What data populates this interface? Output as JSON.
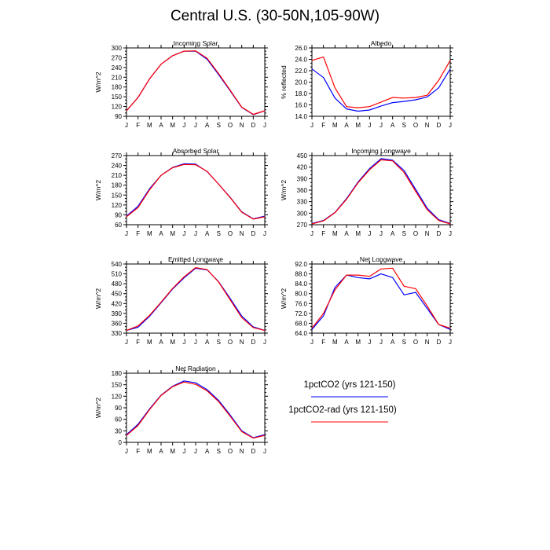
{
  "page_title": "Central U.S. (30-50N,105-90W)",
  "colors": {
    "series1": "#0000ff",
    "series2": "#ff0000",
    "axis": "#000000"
  },
  "legend": [
    {
      "name": "1pctCO2 (yrs 121-150)",
      "color": "#0000ff"
    },
    {
      "name": "1pctCO2-rad (yrs 121-150)",
      "color": "#ff0000"
    }
  ],
  "chart_data": [
    {
      "type": "line",
      "title": "Incoming Solar",
      "ylabel": "W/m^2",
      "categories": [
        "J",
        "F",
        "M",
        "A",
        "M",
        "J",
        "J",
        "A",
        "S",
        "O",
        "N",
        "D",
        "J"
      ],
      "ylim": [
        90,
        300
      ],
      "yticks": [
        90,
        120,
        150,
        180,
        210,
        240,
        270,
        300
      ],
      "series": [
        {
          "name": "1pctCO2 (yrs 121-150)",
          "color": "#0000ff",
          "values": [
            107,
            148,
            205,
            250,
            276,
            290,
            290,
            265,
            218,
            168,
            117,
            95,
            107
          ]
        },
        {
          "name": "1pctCO2-rad (yrs 121-150)",
          "color": "#ff0000",
          "values": [
            107,
            148,
            205,
            250,
            276,
            290,
            291,
            268,
            221,
            170,
            118,
            96,
            107
          ]
        }
      ]
    },
    {
      "type": "line",
      "title": "Albedo",
      "ylabel": "% reflected",
      "categories": [
        "J",
        "F",
        "M",
        "A",
        "M",
        "J",
        "J",
        "A",
        "S",
        "O",
        "N",
        "D",
        "J"
      ],
      "ylim": [
        14,
        26
      ],
      "yticks": [
        "14.0",
        "16.0",
        "18.0",
        "20.0",
        "22.0",
        "24.0",
        "26.0"
      ],
      "series": [
        {
          "name": "1pctCO2 (yrs 121-150)",
          "color": "#0000ff",
          "values": [
            22.3,
            20.8,
            17.2,
            15.3,
            14.9,
            15.1,
            15.8,
            16.4,
            16.6,
            16.9,
            17.4,
            19.0,
            22.3
          ]
        },
        {
          "name": "1pctCO2-rad (yrs 121-150)",
          "color": "#ff0000",
          "values": [
            23.8,
            24.4,
            19.0,
            15.7,
            15.5,
            15.7,
            16.5,
            17.3,
            17.2,
            17.3,
            17.7,
            20.3,
            23.8
          ]
        }
      ]
    },
    {
      "type": "line",
      "title": "Absorbed Solar",
      "ylabel": "W/m^2",
      "categories": [
        "J",
        "F",
        "M",
        "A",
        "M",
        "J",
        "J",
        "A",
        "S",
        "O",
        "N",
        "D",
        "J"
      ],
      "ylim": [
        60,
        270
      ],
      "yticks": [
        60,
        90,
        120,
        150,
        180,
        210,
        240,
        270
      ],
      "series": [
        {
          "name": "1pctCO2 (yrs 121-150)",
          "color": "#0000ff",
          "values": [
            86,
            116,
            169,
            210,
            234,
            245,
            244,
            221,
            183,
            143,
            99,
            78,
            86
          ]
        },
        {
          "name": "1pctCO2-rad (yrs 121-150)",
          "color": "#ff0000",
          "values": [
            84,
            112,
            166,
            210,
            233,
            243,
            242,
            222,
            183,
            142,
            98,
            77,
            84
          ]
        }
      ]
    },
    {
      "type": "line",
      "title": "Incoming Longwave",
      "ylabel": "W/m^2",
      "categories": [
        "J",
        "F",
        "M",
        "A",
        "M",
        "J",
        "J",
        "A",
        "S",
        "O",
        "N",
        "D",
        "J"
      ],
      "ylim": [
        270,
        450
      ],
      "yticks": [
        270,
        300,
        330,
        360,
        390,
        420,
        450
      ],
      "series": [
        {
          "name": "1pctCO2 (yrs 121-150)",
          "color": "#0000ff",
          "values": [
            273,
            281,
            302,
            338,
            381,
            416,
            442,
            438,
            411,
            362,
            313,
            283,
            273
          ]
        },
        {
          "name": "1pctCO2-rad (yrs 121-150)",
          "color": "#ff0000",
          "values": [
            272,
            280,
            301,
            336,
            379,
            413,
            439,
            436,
            406,
            357,
            309,
            281,
            272
          ]
        }
      ]
    },
    {
      "type": "line",
      "title": "Emitted Longwave",
      "ylabel": "W/m^2",
      "categories": [
        "J",
        "F",
        "M",
        "A",
        "M",
        "J",
        "J",
        "A",
        "S",
        "O",
        "N",
        "D",
        "J"
      ],
      "ylim": [
        330,
        540
      ],
      "yticks": [
        330,
        360,
        390,
        420,
        450,
        480,
        510,
        540
      ],
      "series": [
        {
          "name": "1pctCO2 (yrs 121-150)",
          "color": "#0000ff",
          "values": [
            338,
            348,
            381,
            422,
            464,
            498,
            527,
            522,
            486,
            435,
            382,
            349,
            338
          ]
        },
        {
          "name": "1pctCO2-rad (yrs 121-150)",
          "color": "#ff0000",
          "values": [
            338,
            352,
            384,
            424,
            466,
            501,
            529,
            523,
            485,
            431,
            377,
            347,
            338
          ]
        }
      ]
    },
    {
      "type": "line",
      "title": "Net Longwave",
      "ylabel": "W/m^2",
      "categories": [
        "J",
        "F",
        "M",
        "A",
        "M",
        "J",
        "J",
        "A",
        "S",
        "O",
        "N",
        "D",
        "J"
      ],
      "ylim": [
        64,
        92
      ],
      "yticks": [
        "64.0",
        "68.0",
        "72.0",
        "76.0",
        "80.0",
        "84.0",
        "88.0",
        "92.0"
      ],
      "series": [
        {
          "name": "1pctCO2 (yrs 121-150)",
          "color": "#0000ff",
          "values": [
            65.5,
            71.0,
            82.5,
            87.5,
            86.5,
            86.0,
            88.0,
            86.5,
            79.5,
            80.5,
            74.0,
            67.5,
            65.5
          ]
        },
        {
          "name": "1pctCO2-rad (yrs 121-150)",
          "color": "#ff0000",
          "values": [
            66.0,
            72.0,
            81.5,
            87.5,
            87.5,
            87.0,
            90.0,
            90.3,
            83.0,
            82.0,
            75.0,
            67.5,
            66.0
          ]
        }
      ]
    },
    {
      "type": "line",
      "title": "Net Radiation",
      "ylabel": "W/m^2",
      "categories": [
        "J",
        "F",
        "M",
        "A",
        "M",
        "J",
        "J",
        "A",
        "S",
        "O",
        "N",
        "D",
        "J"
      ],
      "ylim": [
        0,
        180
      ],
      "yticks": [
        0,
        30,
        60,
        90,
        120,
        150,
        180
      ],
      "series": [
        {
          "name": "1pctCO2 (yrs 121-150)",
          "color": "#0000ff",
          "values": [
            20,
            47,
            87,
            123,
            146,
            160,
            155,
            137,
            109,
            71,
            30,
            12,
            20
          ]
        },
        {
          "name": "1pctCO2-rad (yrs 121-150)",
          "color": "#ff0000",
          "values": [
            18,
            44,
            85,
            122,
            145,
            157,
            151,
            134,
            106,
            68,
            28,
            11,
            18
          ]
        }
      ]
    }
  ]
}
